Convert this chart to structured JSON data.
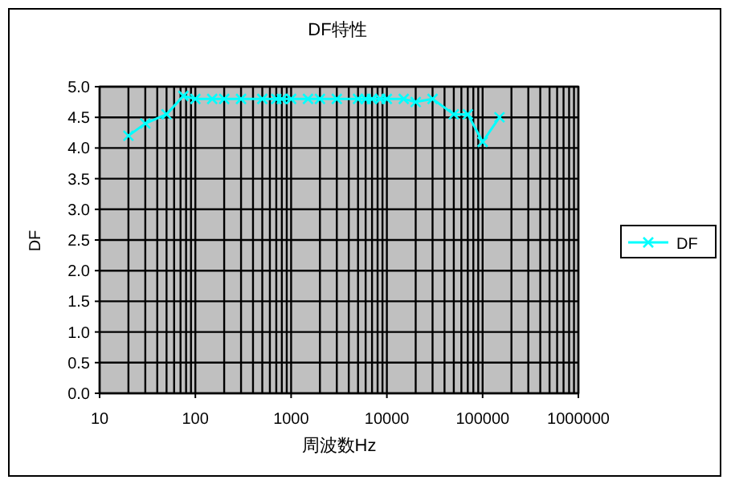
{
  "chart_data": {
    "type": "line",
    "title": "DF特性",
    "xlabel": "周波数Hz",
    "ylabel": "DF",
    "log": "x",
    "grid": true,
    "legend": "right",
    "marker": "cross",
    "line_style": "solid",
    "xlim": [
      10,
      1000000
    ],
    "xticks": [
      10,
      100,
      1000,
      10000,
      100000,
      1000000
    ],
    "ylim": [
      0,
      5
    ],
    "yticks": [
      {
        "value": 0,
        "label": "0.0"
      },
      {
        "value": 0.5,
        "label": "0.5"
      },
      {
        "value": 1,
        "label": "1.0"
      },
      {
        "value": 1.5,
        "label": "1.5"
      },
      {
        "value": 2,
        "label": "2.0"
      },
      {
        "value": 2.5,
        "label": "2.5"
      },
      {
        "value": 3,
        "label": "3.0"
      },
      {
        "value": 3.5,
        "label": "3.5"
      },
      {
        "value": 4,
        "label": "4.0"
      },
      {
        "value": 4.5,
        "label": "4.5"
      },
      {
        "value": 5,
        "label": "5.0"
      }
    ],
    "series": [
      {
        "name": "DF",
        "color": "#00ffff",
        "x": [
          20,
          30,
          50,
          75,
          100,
          150,
          200,
          300,
          500,
          700,
          800,
          1000,
          1500,
          2000,
          3000,
          5000,
          6000,
          7000,
          8500,
          10000,
          15000,
          20000,
          30000,
          50000,
          70000,
          100000,
          150000
        ],
        "values": [
          4.2,
          4.4,
          4.55,
          4.85,
          4.8,
          4.8,
          4.8,
          4.8,
          4.8,
          4.8,
          4.8,
          4.8,
          4.8,
          4.8,
          4.8,
          4.8,
          4.8,
          4.8,
          4.8,
          4.8,
          4.8,
          4.75,
          4.8,
          4.55,
          4.55,
          4.1,
          4.5
        ]
      }
    ]
  }
}
